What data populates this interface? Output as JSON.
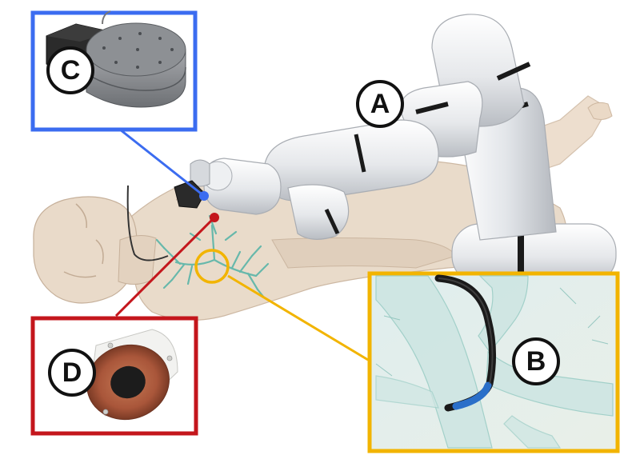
{
  "labels": {
    "a": "A",
    "b": "B",
    "c": "C",
    "d": "D"
  },
  "colors": {
    "c_inset_border": "#3b6cf0",
    "d_inset_border": "#c4161c",
    "b_inset_border": "#f2b400",
    "robot_body": "#e9ebee",
    "robot_band": "#1a1a1a",
    "patient_body": "#e7d8c8",
    "bronchi": "#5ab5a8",
    "coil": "#c56d4c"
  },
  "icons": {
    "robot": "robot-arm-icon",
    "patient": "patient-body-icon",
    "magnet_c": "magnet-actuator-icon",
    "coil_d": "coil-sensor-icon",
    "catheter_b": "catheter-icon"
  }
}
